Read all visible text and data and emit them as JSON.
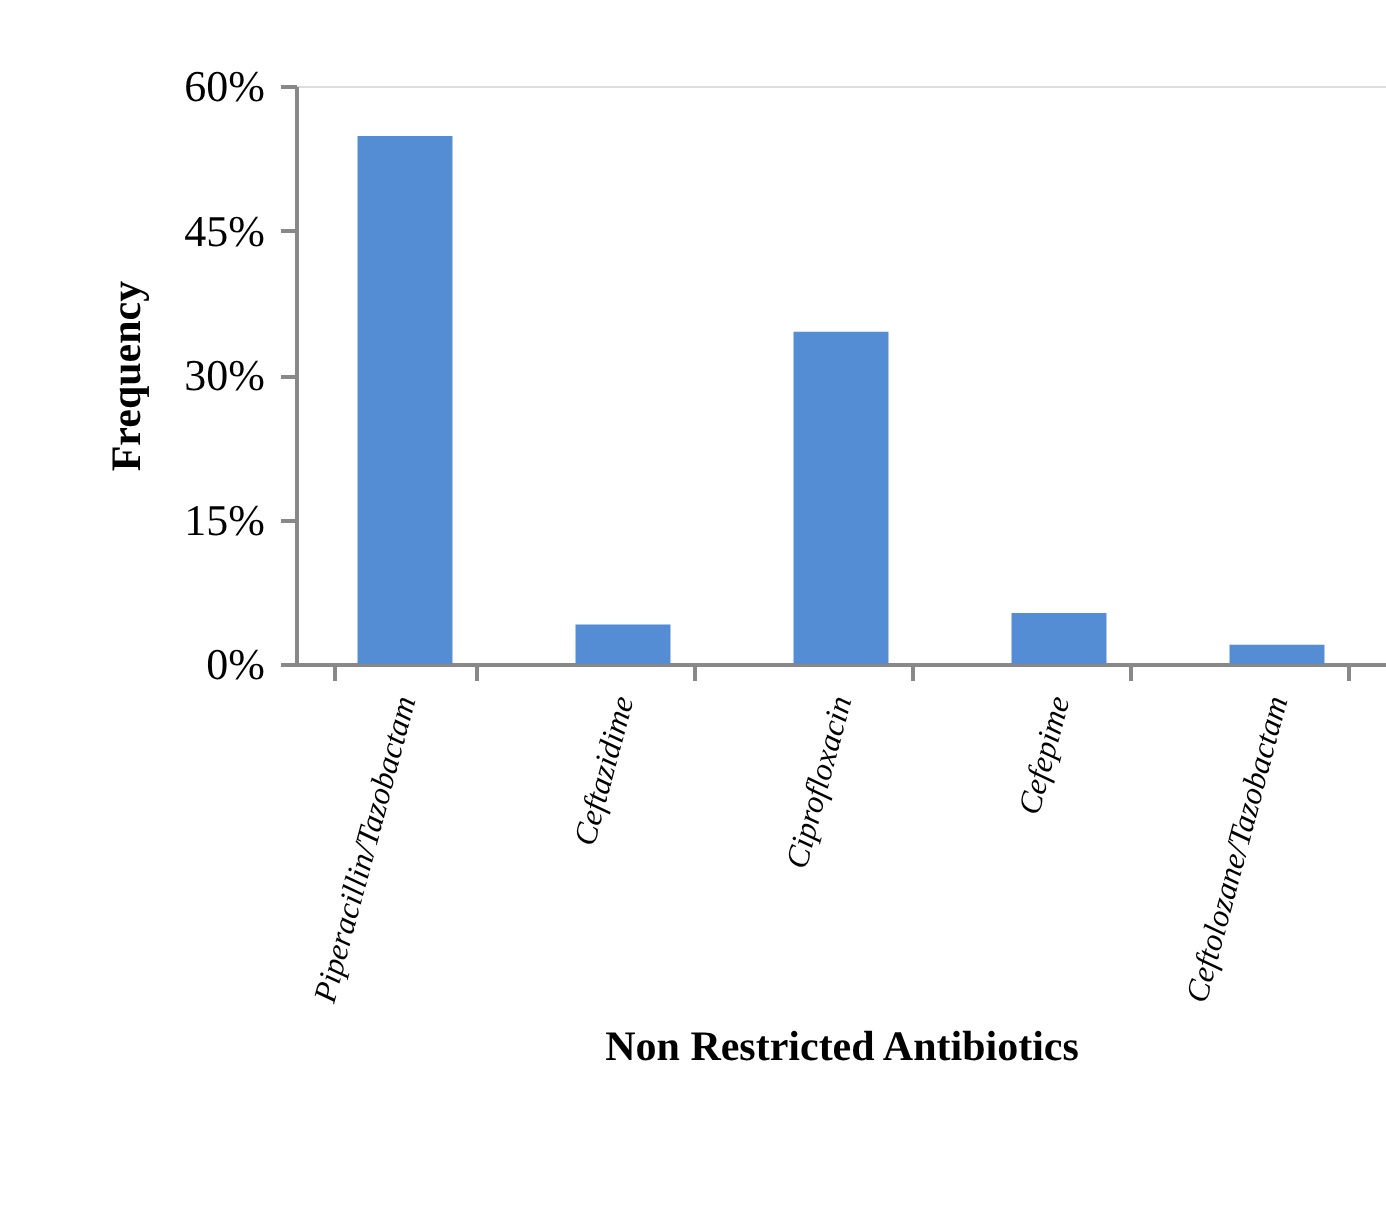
{
  "chart_data": {
    "type": "bar",
    "xlabel": "Non Restricted Antibiotics",
    "ylabel": "Frequency",
    "categories": [
      "Piperacillin/Tazobactam",
      "Ceftazidime",
      "Ciprofloxacin",
      "Cefepime",
      "Ceftolozane/Tazobactam"
    ],
    "values": [
      54.8,
      4.1,
      34.5,
      5.3,
      2.0
    ],
    "color": "#548dd4",
    "ylim": [
      0,
      60
    ],
    "yticks": [
      {
        "value": 0,
        "label": "0%"
      },
      {
        "value": 15,
        "label": "15%"
      },
      {
        "value": 30,
        "label": "30%"
      },
      {
        "value": 45,
        "label": "45%"
      },
      {
        "value": 60,
        "label": "60%"
      }
    ],
    "grid": false
  }
}
